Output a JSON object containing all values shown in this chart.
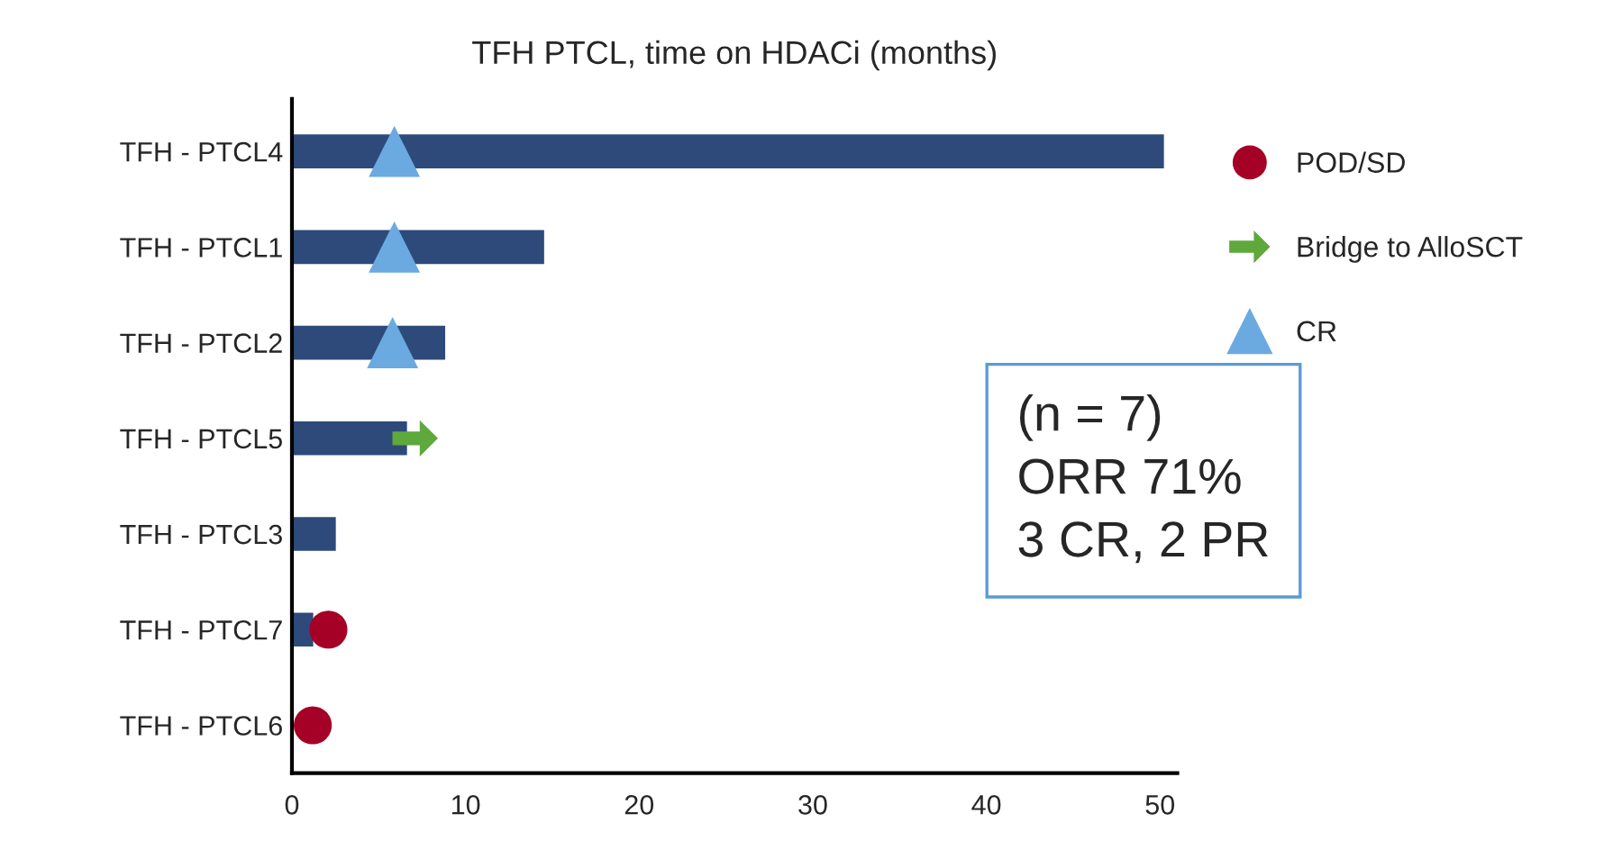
{
  "chart_data": {
    "type": "bar",
    "orientation": "horizontal",
    "title": "TFH PTCL, time on HDACi (months)",
    "categories": [
      "TFH - PTCL4",
      "TFH - PTCL1",
      "TFH - PTCL2",
      "TFH - PTCL5",
      "TFH - PTCL3",
      "TFH - PTCL7",
      "TFH - PTCL6"
    ],
    "series": [
      {
        "color": "#2e4a7a",
        "values": [
          50.3,
          14.6,
          8.9,
          6.7,
          2.6,
          1.3,
          null
        ]
      },
      {
        "type": "scatter",
        "name": "POD/SD",
        "marker": "circle",
        "color": "#a50026",
        "values": [
          null,
          null,
          null,
          null,
          null,
          2.1,
          1.2
        ]
      },
      {
        "type": "scatter",
        "name": "Bridge to AlloSCT",
        "color": "#5fa83c",
        "values": [
          null,
          null,
          null,
          7.1,
          null,
          null,
          null
        ]
      },
      {
        "type": "scatter",
        "name": "CR",
        "marker": "triangle",
        "color": "#6aaae0",
        "values": [
          5.9,
          5.9,
          5.8,
          null,
          null,
          null,
          null
        ]
      }
    ],
    "xlim": [
      0,
      51
    ],
    "xticks": [
      0,
      10,
      20,
      30,
      40,
      50
    ],
    "legend": "right",
    "grid": false,
    "annotations": [
      "(n = 7)\nORR 71%\n3 CR, 2 PR"
    ]
  }
}
